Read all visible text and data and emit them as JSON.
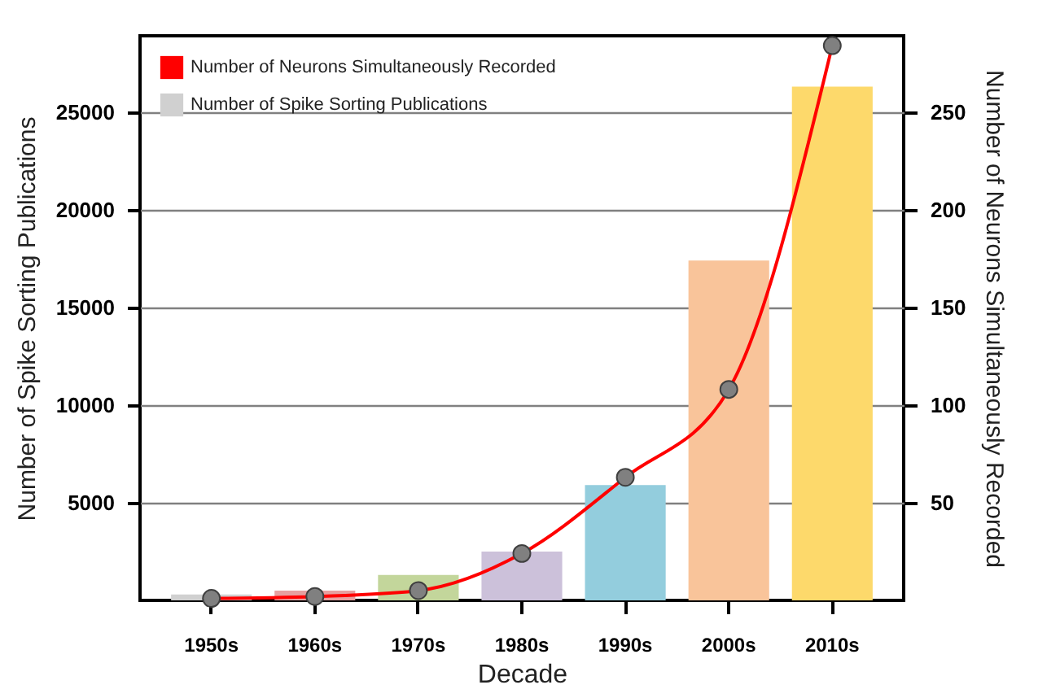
{
  "chart_data": {
    "type": "bar",
    "xlabel": "Decade",
    "ylabel": "Number of Spike Sorting Publications",
    "y2label": "Number of Neurons Simultaneously Recorded",
    "categories": [
      "1950s",
      "1960s",
      "1970s",
      "1980s",
      "1990s",
      "2000s",
      "2010s"
    ],
    "series": [
      {
        "name": "Number of Neurons Simultaneously Recorded",
        "type": "line",
        "axis": "y2",
        "color": "#ff0000",
        "values": [
          1,
          2,
          5,
          24,
          63,
          108,
          284
        ]
      },
      {
        "name": "Number of Spike Sorting Publications",
        "color": "#d0d0d0",
        "colors": [
          "#d0d0d0",
          "#e6a0a0",
          "#c3d69b",
          "#ccc1da",
          "#93cddd",
          "#f9c49a",
          "#fdd96b"
        ],
        "values": [
          300,
          500,
          1300,
          2500,
          5900,
          17400,
          26300
        ]
      }
    ],
    "ylim": [
      0,
      28900
    ],
    "yticks": [
      5000,
      10000,
      15000,
      20000,
      25000
    ],
    "y2lim": [
      0,
      289
    ],
    "y2ticks": [
      50,
      100,
      150,
      200,
      250
    ],
    "grid": "y",
    "legend": "top left",
    "marker": "circle"
  }
}
